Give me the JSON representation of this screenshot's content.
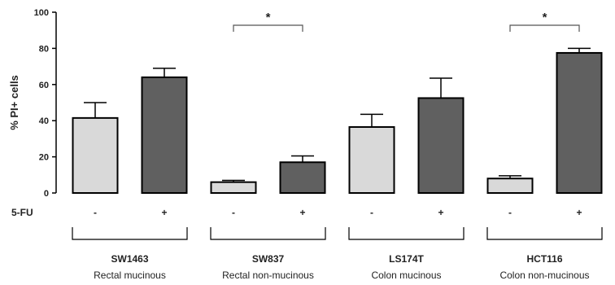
{
  "chart_data": {
    "type": "bar",
    "ylabel": "% PI+ cells",
    "ylim": [
      0,
      100
    ],
    "yticks": [
      "0",
      "20",
      "40",
      "60",
      "80",
      "100"
    ],
    "treatment_row_label": "5-FU",
    "colors": {
      "untreated": "#d9d9d9",
      "treated": "#606060",
      "stroke": "#000000"
    },
    "groups": [
      {
        "name": "SW1463",
        "description": "Rectal mucinous",
        "bars": [
          {
            "treatment": "-",
            "value": 41.5,
            "error": 8.5
          },
          {
            "treatment": "+",
            "value": 64,
            "error": 5
          }
        ],
        "significance": ""
      },
      {
        "name": "SW837",
        "description": "Rectal non-mucinous",
        "bars": [
          {
            "treatment": "-",
            "value": 6,
            "error": 1
          },
          {
            "treatment": "+",
            "value": 17,
            "error": 3.5
          }
        ],
        "significance": "*"
      },
      {
        "name": "LS174T",
        "description": "Colon mucinous",
        "bars": [
          {
            "treatment": "-",
            "value": 36.5,
            "error": 7
          },
          {
            "treatment": "+",
            "value": 52.5,
            "error": 11
          }
        ],
        "significance": ""
      },
      {
        "name": "HCT116",
        "description": "Colon non-mucinous",
        "bars": [
          {
            "treatment": "-",
            "value": 8,
            "error": 1.5
          },
          {
            "treatment": "+",
            "value": 77.5,
            "error": 2.5
          }
        ],
        "significance": "*"
      }
    ]
  }
}
